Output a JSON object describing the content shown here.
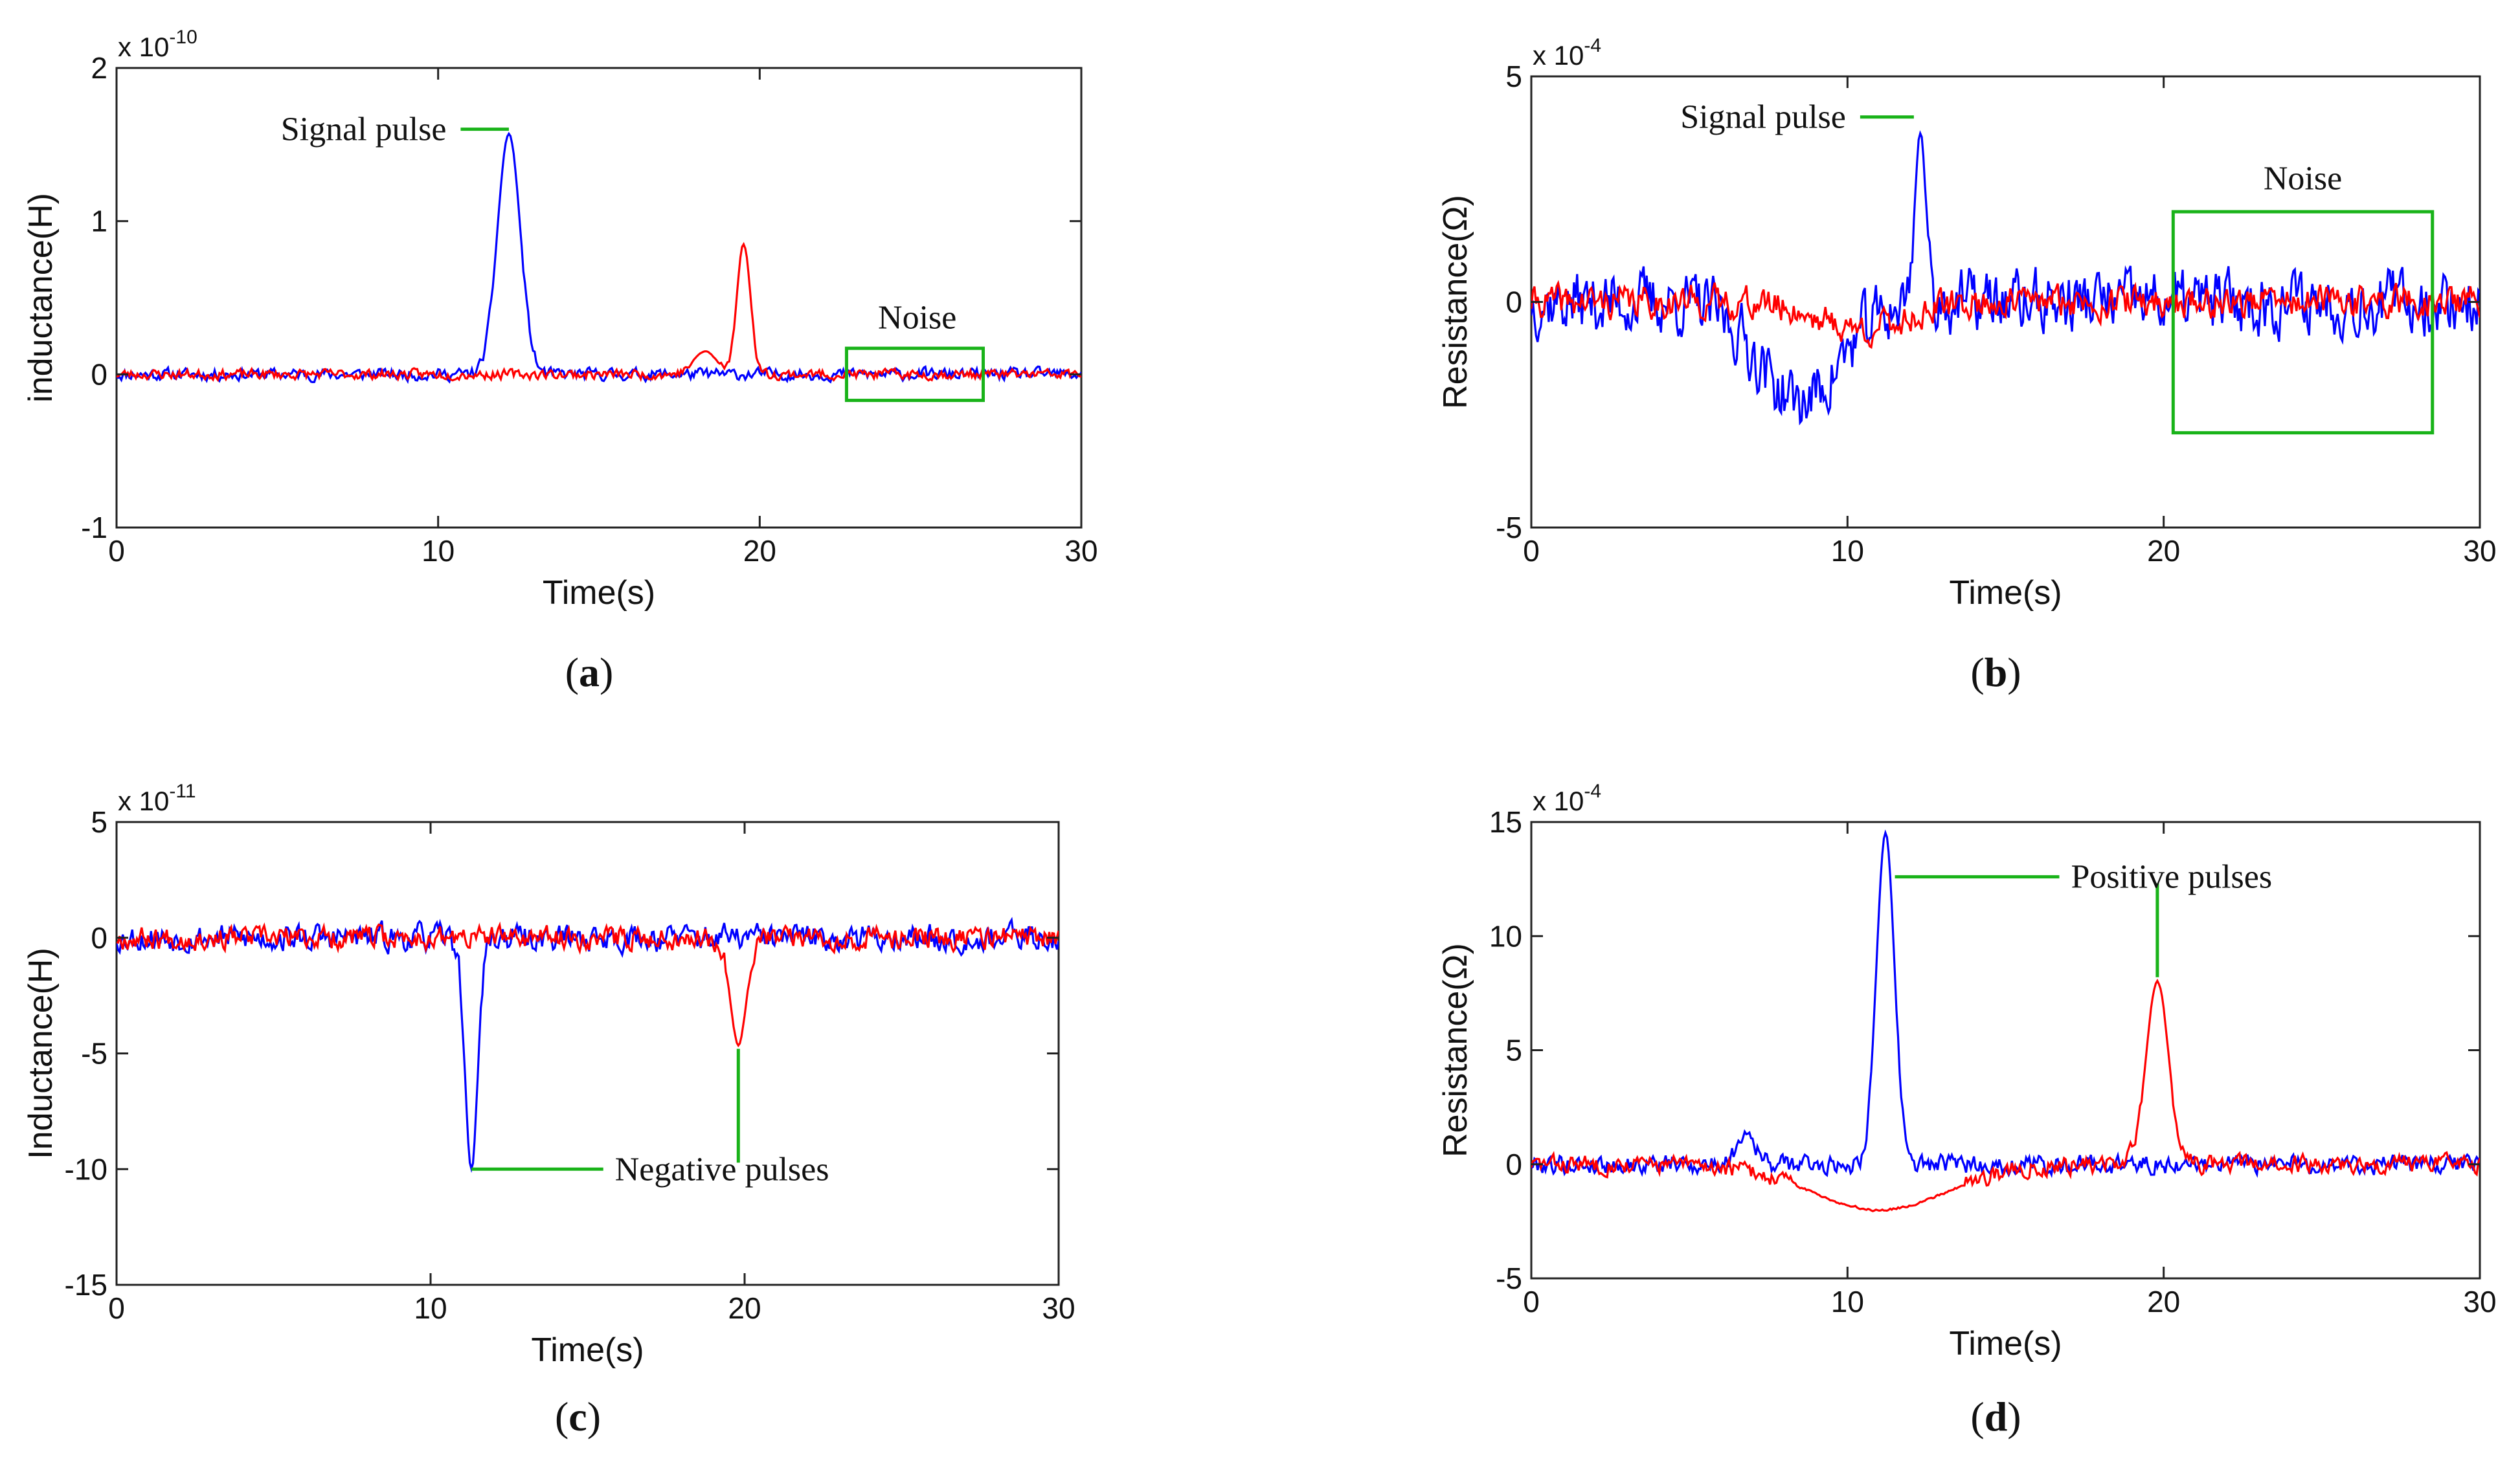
{
  "figure": {
    "colors": {
      "blue": "#0000ff",
      "red": "#ff0000",
      "annotation": "#19b319",
      "axis": "#222222"
    }
  },
  "chart_data": [
    {
      "id": "a",
      "type": "line",
      "caption": "a",
      "title": "",
      "xlabel": "Time(s)",
      "ylabel": "inductance(H)",
      "exponent_base": "x 10",
      "exponent_power": "-10",
      "xlim": [
        0,
        30
      ],
      "ylim": [
        -1,
        2
      ],
      "xticks": [
        0,
        10,
        20,
        30
      ],
      "yticks": [
        -1,
        0,
        1,
        2
      ],
      "series": [
        {
          "name": "blue",
          "color": "#0000ff",
          "noise": 0.06,
          "pulses": [
            {
              "center": 12.2,
              "amp": 1.57,
              "width": 0.5
            }
          ],
          "seed": 11
        },
        {
          "name": "red",
          "color": "#ff0000",
          "noise": 0.05,
          "pulses": [
            {
              "center": 19.5,
              "amp": 0.85,
              "width": 0.3
            },
            {
              "center": 18.3,
              "amp": 0.15,
              "width": 0.5
            }
          ],
          "seed": 23
        }
      ],
      "annotations": [
        {
          "text": "Signal pulse",
          "kind": "leader",
          "point": [
            12.2,
            1.6
          ],
          "end": [
            10.7,
            1.6
          ],
          "align": "end"
        },
        {
          "text": "Noise",
          "kind": "box",
          "box": [
            22.7,
            26.95,
            -0.17,
            0.17
          ],
          "label_at": [
            24.9,
            0.3
          ]
        }
      ]
    },
    {
      "id": "b",
      "type": "line",
      "caption": "b",
      "title": "",
      "xlabel": "Time(s)",
      "ylabel": "Resistance(Ω)",
      "exponent_base": "x 10",
      "exponent_power": "-4",
      "xlim": [
        0,
        30
      ],
      "ylim": [
        -5,
        5
      ],
      "xticks": [
        0,
        10,
        20,
        30
      ],
      "yticks": [
        -5,
        0,
        5
      ],
      "series": [
        {
          "name": "blue",
          "color": "#0000ff",
          "noise": 1.1,
          "pulses": [
            {
              "center": 12.3,
              "amp": 3.8,
              "width": 0.25
            },
            {
              "center": 8.5,
              "amp": -2.2,
              "width": 1.8
            }
          ],
          "seed": 37
        },
        {
          "name": "red",
          "color": "#ff0000",
          "noise": 0.55,
          "pulses": [
            {
              "center": 10.5,
              "amp": -0.6,
              "width": 2.0
            }
          ],
          "seed": 41
        }
      ],
      "annotations": [
        {
          "text": "Signal pulse",
          "kind": "leader",
          "point": [
            12.1,
            4.1
          ],
          "end": [
            10.4,
            4.1
          ],
          "align": "end"
        },
        {
          "text": "Noise",
          "kind": "box",
          "box": [
            20.3,
            28.5,
            -2.9,
            2.0
          ],
          "label_at": [
            24.4,
            2.5
          ]
        }
      ]
    },
    {
      "id": "c",
      "type": "line",
      "caption": "c",
      "title": "",
      "xlabel": "Time(s)",
      "ylabel": "Inductance(H)",
      "exponent_base": "x 10",
      "exponent_power": "-11",
      "xlim": [
        0,
        30
      ],
      "ylim": [
        -15,
        5
      ],
      "xticks": [
        0,
        10,
        20,
        30
      ],
      "yticks": [
        -15,
        -10,
        -5,
        0,
        5
      ],
      "series": [
        {
          "name": "blue",
          "color": "#0000ff",
          "noise": 0.9,
          "pulses": [
            {
              "center": 11.3,
              "amp": -10.0,
              "width": 0.28
            }
          ],
          "seed": 53
        },
        {
          "name": "red",
          "color": "#ff0000",
          "noise": 0.75,
          "pulses": [
            {
              "center": 19.8,
              "amp": -4.6,
              "width": 0.35
            }
          ],
          "seed": 67
        }
      ],
      "annotations": [
        {
          "text": "Negative pulses",
          "kind": "bracket",
          "points": [
            [
              11.3,
              -10.0
            ],
            [
              19.8,
              -4.8
            ]
          ],
          "corner_y": -10.0,
          "end": [
            15.5,
            -10.0
          ],
          "align": "start"
        }
      ]
    },
    {
      "id": "d",
      "type": "line",
      "caption": "d",
      "title": "",
      "xlabel": "Time(s)",
      "ylabel": "Resistance(Ω)",
      "exponent_base": "x 10",
      "exponent_power": "-4",
      "xlim": [
        0,
        30
      ],
      "ylim": [
        -5,
        15
      ],
      "xticks": [
        0,
        10,
        20,
        30
      ],
      "yticks": [
        -5,
        0,
        5,
        10,
        15
      ],
      "series": [
        {
          "name": "blue",
          "color": "#0000ff",
          "noise": 0.65,
          "pulses": [
            {
              "center": 11.2,
              "amp": 14.5,
              "width": 0.4
            },
            {
              "center": 6.8,
              "amp": 1.5,
              "width": 0.4
            }
          ],
          "seed": 79
        },
        {
          "name": "red",
          "color": "#ff0000",
          "noise": 0.6,
          "pulses": [
            {
              "center": 19.8,
              "amp": 8.0,
              "width": 0.5
            },
            {
              "center": 11.0,
              "amp": -2.0,
              "width": 3.0
            }
          ],
          "seed": 83
        }
      ],
      "annotations": [
        {
          "text": "Positive pulses",
          "kind": "bracket_up",
          "points": [
            [
              11.5,
              12.6
            ],
            [
              19.8,
              8.2
            ]
          ],
          "corner_y": 12.6,
          "end": [
            16.7,
            12.6
          ],
          "align": "start"
        }
      ]
    }
  ]
}
